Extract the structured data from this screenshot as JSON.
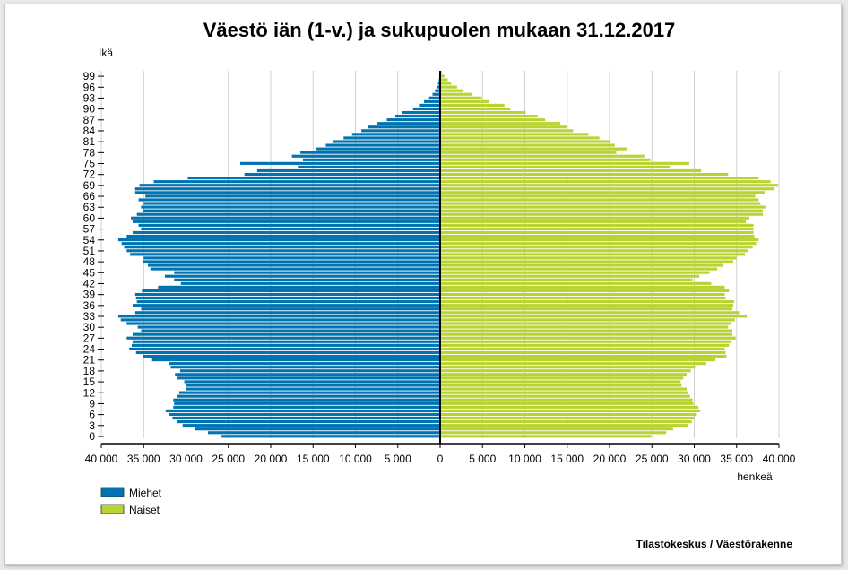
{
  "chart_data": {
    "type": "bar",
    "subtype": "population-pyramid",
    "title": "Väestö iän (1-v.) ja sukupuolen mukaan 31.12.2017",
    "ylabel": "Ikä",
    "xlabel": "henkeä",
    "source": "Tilastokeskus / Väestörakenne",
    "xlim": [
      -40000,
      40000
    ],
    "x_ticks": [
      -40000,
      -35000,
      -30000,
      -25000,
      -20000,
      -15000,
      -10000,
      -5000,
      0,
      5000,
      10000,
      15000,
      20000,
      25000,
      30000,
      35000,
      40000
    ],
    "x_tick_labels": [
      "40 000",
      "35 000",
      "30 000",
      "25 000",
      "20 000",
      "15 000",
      "10 000",
      "5 000",
      "0",
      "5 000",
      "10 000",
      "15 000",
      "20 000",
      "25 000",
      "30 000",
      "35 000",
      "40 000"
    ],
    "y_ticks": [
      0,
      3,
      6,
      9,
      12,
      15,
      18,
      21,
      24,
      27,
      30,
      33,
      36,
      39,
      42,
      45,
      48,
      51,
      54,
      57,
      60,
      63,
      66,
      69,
      72,
      75,
      78,
      81,
      84,
      87,
      90,
      93,
      96,
      99
    ],
    "grid": "vertical",
    "legend_position": "bottom-left",
    "categories_age": [
      0,
      1,
      2,
      3,
      4,
      5,
      6,
      7,
      8,
      9,
      10,
      11,
      12,
      13,
      14,
      15,
      16,
      17,
      18,
      19,
      20,
      21,
      22,
      23,
      24,
      25,
      26,
      27,
      28,
      29,
      30,
      31,
      32,
      33,
      34,
      35,
      36,
      37,
      38,
      39,
      40,
      41,
      42,
      43,
      44,
      45,
      46,
      47,
      48,
      49,
      50,
      51,
      52,
      53,
      54,
      55,
      56,
      57,
      58,
      59,
      60,
      61,
      62,
      63,
      64,
      65,
      66,
      67,
      68,
      69,
      70,
      71,
      72,
      73,
      74,
      75,
      76,
      77,
      78,
      79,
      80,
      81,
      82,
      83,
      84,
      85,
      86,
      87,
      88,
      89,
      90,
      91,
      92,
      93,
      94,
      95,
      96,
      97,
      98,
      99,
      100
    ],
    "series": [
      {
        "name": "Miehet",
        "color": "#0073b0",
        "values": [
          25800,
          27400,
          29000,
          30400,
          31000,
          31600,
          32000,
          32400,
          31500,
          31400,
          31500,
          31000,
          30800,
          30000,
          30000,
          30200,
          31000,
          31300,
          30700,
          31800,
          32000,
          34000,
          35100,
          35900,
          36700,
          36400,
          36300,
          37000,
          36300,
          35300,
          35700,
          37000,
          37700,
          38000,
          36000,
          35300,
          36300,
          35800,
          35900,
          36000,
          35200,
          33300,
          30600,
          31400,
          32500,
          31400,
          34200,
          34500,
          35100,
          35000,
          36600,
          37000,
          37300,
          37600,
          38000,
          37000,
          36300,
          35300,
          35600,
          36300,
          36500,
          35800,
          35100,
          35300,
          35000,
          35600,
          34800,
          36000,
          36000,
          35500,
          33800,
          29800,
          23100,
          21600,
          16800,
          23600,
          16200,
          17500,
          16500,
          14700,
          13500,
          12700,
          11400,
          10400,
          9300,
          8500,
          7400,
          6300,
          5300,
          4500,
          3200,
          2500,
          1900,
          1300,
          900,
          600,
          400,
          250,
          150,
          100,
          50
        ]
      },
      {
        "name": "Naiset",
        "color": "#b8d432",
        "values": [
          24900,
          26700,
          27500,
          29200,
          29700,
          30000,
          30200,
          30700,
          30500,
          29900,
          29800,
          29500,
          29200,
          29100,
          28500,
          28400,
          28700,
          29100,
          29600,
          30100,
          31400,
          32500,
          33800,
          33700,
          33600,
          34100,
          34300,
          34900,
          34500,
          34500,
          34000,
          34400,
          34800,
          36200,
          35300,
          34500,
          34600,
          34700,
          33700,
          33600,
          34100,
          33600,
          32000,
          29800,
          30600,
          31800,
          32700,
          33400,
          34600,
          35000,
          36000,
          36400,
          36900,
          37300,
          37600,
          37100,
          37000,
          37000,
          37000,
          36100,
          36500,
          38100,
          38100,
          38400,
          37800,
          37600,
          37200,
          38300,
          39400,
          39900,
          39000,
          37600,
          34000,
          30800,
          27100,
          29400,
          24800,
          24100,
          20800,
          22100,
          20600,
          20100,
          18800,
          17500,
          15700,
          15000,
          14200,
          12400,
          11500,
          10100,
          8300,
          7600,
          5800,
          4900,
          3700,
          2700,
          2000,
          1300,
          900,
          500,
          200
        ]
      }
    ]
  }
}
